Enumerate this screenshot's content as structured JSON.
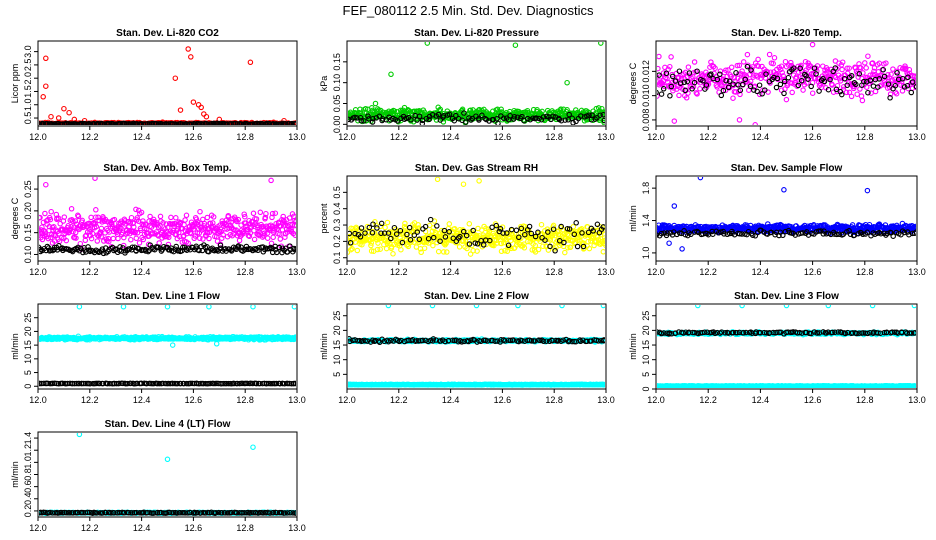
{
  "figure": {
    "title": "FEF_080112  2.5 Min. Std. Dev. Diagnostics"
  },
  "colors": {
    "black": "#000000",
    "red": "#ff0000",
    "green": "#00cc00",
    "magenta": "#ff00ff",
    "yellow": "#ffff00",
    "blue": "#0000ff",
    "cyan": "#00ffff"
  },
  "chart_data": [
    {
      "type": "scatter",
      "title": "Stan. Dev. Li-820 CO2",
      "ylabel": "Licor ppm",
      "xlim": [
        12.0,
        13.0
      ],
      "ylim": [
        0.2,
        3.4
      ],
      "xticks": [
        "12.0",
        "12.2",
        "12.4",
        "12.6",
        "12.8",
        "13.0"
      ],
      "yticks": [
        {
          "v": 0.5,
          "label": "0.5"
        },
        {
          "v": 1.0,
          "label": "1.0"
        },
        {
          "v": 1.5,
          "label": "1.5"
        },
        {
          "v": 2.0,
          "label": "2.0"
        },
        {
          "v": 2.5,
          "label": "2.5"
        },
        {
          "v": 3.0,
          "label": "3.0"
        }
      ],
      "series": [
        {
          "name": "all",
          "color": "red",
          "base": 0.3,
          "spread": 0.05,
          "n": 260,
          "outliers": [
            [
              12.02,
              1.3
            ],
            [
              12.03,
              1.7
            ],
            [
              12.03,
              2.75
            ],
            [
              12.05,
              0.55
            ],
            [
              12.08,
              0.5
            ],
            [
              12.1,
              0.85
            ],
            [
              12.12,
              0.7
            ],
            [
              12.14,
              0.45
            ],
            [
              12.18,
              0.4
            ],
            [
              12.53,
              2.0
            ],
            [
              12.55,
              0.8
            ],
            [
              12.58,
              3.1
            ],
            [
              12.59,
              2.8
            ],
            [
              12.6,
              1.1
            ],
            [
              12.62,
              1.0
            ],
            [
              12.63,
              0.9
            ],
            [
              12.64,
              0.65
            ],
            [
              12.65,
              0.55
            ],
            [
              12.7,
              0.45
            ],
            [
              12.82,
              2.6
            ],
            [
              12.95,
              0.4
            ]
          ]
        },
        {
          "name": "sel",
          "color": "black",
          "base": 0.28,
          "spread": 0.03,
          "n": 200,
          "outliers": []
        }
      ]
    },
    {
      "type": "scatter",
      "title": "Stan. Dev. Li-820 Pressure",
      "ylabel": "kPa",
      "xlim": [
        12.0,
        13.0
      ],
      "ylim": [
        -0.004,
        0.2
      ],
      "xticks": [
        "12.0",
        "12.2",
        "12.4",
        "12.6",
        "12.8",
        "13.0"
      ],
      "yticks": [
        {
          "v": 0.0,
          "label": "0.00"
        },
        {
          "v": 0.05,
          "label": "0.05"
        },
        {
          "v": 0.1,
          "label": "0.10"
        },
        {
          "v": 0.15,
          "label": "0.15"
        }
      ],
      "series": [
        {
          "name": "all",
          "color": "green",
          "base": 0.022,
          "spread": 0.022,
          "n": 500,
          "outliers": [
            [
              12.11,
              0.05
            ],
            [
              12.17,
              0.12
            ],
            [
              12.31,
              0.195
            ],
            [
              12.65,
              0.19
            ],
            [
              12.85,
              0.1
            ],
            [
              12.98,
              0.195
            ]
          ]
        },
        {
          "name": "sel",
          "color": "black",
          "base": 0.015,
          "spread": 0.015,
          "n": 110,
          "outliers": []
        }
      ]
    },
    {
      "type": "scatter",
      "title": "Stan. Dev. Li-820 Temp.",
      "ylabel": "degrees C",
      "xlim": [
        12.0,
        13.0
      ],
      "ylim": [
        0.0075,
        0.0145
      ],
      "xticks": [
        "12.0",
        "12.2",
        "12.4",
        "12.6",
        "12.8",
        "13.0"
      ],
      "yticks": [
        {
          "v": 0.008,
          "label": "0.008"
        },
        {
          "v": 0.01,
          "label": "0.010"
        },
        {
          "v": 0.012,
          "label": "0.012"
        }
      ],
      "series": [
        {
          "name": "all",
          "color": "magenta",
          "base": 0.0115,
          "spread": 0.0022,
          "n": 420,
          "outliers": [
            [
              12.07,
              0.0079
            ],
            [
              12.32,
              0.008
            ],
            [
              12.38,
              0.0076
            ],
            [
              12.6,
              0.0142
            ]
          ]
        },
        {
          "name": "sel",
          "color": "black",
          "base": 0.0112,
          "spread": 0.0016,
          "n": 110,
          "outliers": []
        }
      ]
    },
    {
      "type": "scatter",
      "title": "Stan. Dev. Amb. Box Temp.",
      "ylabel": "degrees C",
      "xlim": [
        12.0,
        13.0
      ],
      "ylim": [
        0.085,
        0.28
      ],
      "xticks": [
        "12.0",
        "12.2",
        "12.4",
        "12.6",
        "12.8",
        "13.0"
      ],
      "yticks": [
        {
          "v": 0.1,
          "label": "0.10"
        },
        {
          "v": 0.15,
          "label": "0.15"
        },
        {
          "v": 0.2,
          "label": "0.20"
        },
        {
          "v": 0.25,
          "label": "0.25"
        }
      ],
      "series": [
        {
          "name": "all",
          "color": "magenta",
          "base": 0.16,
          "spread": 0.05,
          "n": 520,
          "outliers": [
            [
              12.03,
              0.26
            ],
            [
              12.22,
              0.275
            ],
            [
              12.9,
              0.27
            ]
          ]
        },
        {
          "name": "sel",
          "color": "black",
          "base": 0.112,
          "spread": 0.012,
          "n": 190,
          "outliers": []
        }
      ]
    },
    {
      "type": "scatter",
      "title": "Stan. Dev. Gas Stream RH",
      "ylabel": "percent",
      "xlim": [
        12.0,
        13.0
      ],
      "ylim": [
        0.08,
        0.6
      ],
      "xticks": [
        "12.0",
        "12.2",
        "12.4",
        "12.6",
        "12.8",
        "13.0"
      ],
      "yticks": [
        {
          "v": 0.1,
          "label": "0.1"
        },
        {
          "v": 0.2,
          "label": "0.2"
        },
        {
          "v": 0.3,
          "label": "0.3"
        },
        {
          "v": 0.4,
          "label": "0.4"
        },
        {
          "v": 0.5,
          "label": "0.5"
        }
      ],
      "series": [
        {
          "name": "all",
          "color": "yellow",
          "base": 0.22,
          "spread": 0.12,
          "n": 520,
          "outliers": [
            [
              12.35,
              0.58
            ],
            [
              12.51,
              0.57
            ],
            [
              12.45,
              0.55
            ]
          ]
        },
        {
          "name": "sel",
          "color": "black",
          "base": 0.25,
          "spread": 0.12,
          "n": 90,
          "outliers": []
        }
      ]
    },
    {
      "type": "scatter",
      "title": "Stan. Dev. Sample Flow",
      "ylabel": "ml/min",
      "xlim": [
        12.0,
        13.0
      ],
      "ylim": [
        0.9,
        1.95
      ],
      "xticks": [
        "12.0",
        "12.2",
        "12.4",
        "12.6",
        "12.8",
        "13.0"
      ],
      "yticks": [
        {
          "v": 1.0,
          "label": "1.0"
        },
        {
          "v": 1.4,
          "label": "1.4"
        },
        {
          "v": 1.8,
          "label": "1.8"
        }
      ],
      "series": [
        {
          "name": "all",
          "color": "blue",
          "base": 1.3,
          "spread": 0.07,
          "n": 520,
          "outliers": [
            [
              12.07,
              1.58
            ],
            [
              12.17,
              1.93
            ],
            [
              12.49,
              1.78
            ],
            [
              12.81,
              1.77
            ],
            [
              12.1,
              1.05
            ],
            [
              12.05,
              1.12
            ]
          ]
        },
        {
          "name": "sel",
          "color": "black",
          "base": 1.24,
          "spread": 0.05,
          "n": 120,
          "outliers": []
        }
      ]
    },
    {
      "type": "scatter",
      "title": "Stan. Dev. Line 1 Flow",
      "ylabel": "ml/min",
      "xlim": [
        12.0,
        13.0
      ],
      "ylim": [
        -1,
        30
      ],
      "xticks": [
        "12.0",
        "12.2",
        "12.4",
        "12.6",
        "12.8",
        "13.0"
      ],
      "yticks": [
        {
          "v": 0,
          "label": "0"
        },
        {
          "v": 5,
          "label": "5"
        },
        {
          "v": 10,
          "label": "10"
        },
        {
          "v": 15,
          "label": "15"
        },
        {
          "v": 20,
          "label": "20"
        },
        {
          "v": 25,
          "label": "25"
        }
      ],
      "series": [
        {
          "name": "all",
          "color": "cyan",
          "base": 17.5,
          "spread": 0.8,
          "n": 460,
          "outliers": [
            [
              12.16,
              29
            ],
            [
              12.33,
              29
            ],
            [
              12.5,
              29
            ],
            [
              12.66,
              29
            ],
            [
              12.83,
              29
            ],
            [
              12.99,
              29
            ],
            [
              12.52,
              15
            ],
            [
              12.69,
              15.5
            ]
          ]
        },
        {
          "name": "sel",
          "color": "black",
          "base": 1.0,
          "spread": 0.1,
          "n": 160,
          "outliers": []
        }
      ]
    },
    {
      "type": "scatter",
      "title": "Stan. Dev. Line 2 Flow",
      "ylabel": "ml/min",
      "xlim": [
        12.0,
        13.0
      ],
      "ylim": [
        0,
        29
      ],
      "xticks": [
        "12.0",
        "12.2",
        "12.4",
        "12.6",
        "12.8",
        "13.0"
      ],
      "yticks": [
        {
          "v": 5,
          "label": "5"
        },
        {
          "v": 10,
          "label": "10"
        },
        {
          "v": 15,
          "label": "15"
        },
        {
          "v": 20,
          "label": "20"
        },
        {
          "v": 25,
          "label": "25"
        }
      ],
      "series": [
        {
          "name": "all",
          "color": "cyan",
          "base": 1.5,
          "spread": 0.15,
          "n": 400,
          "outliers": [
            [
              12.16,
              28.5
            ],
            [
              12.33,
              28.5
            ],
            [
              12.5,
              28.5
            ],
            [
              12.66,
              28.5
            ],
            [
              12.83,
              28.5
            ],
            [
              12.99,
              28.5
            ]
          ]
        },
        {
          "name": "all-hi",
          "color": "cyan",
          "base": 16.5,
          "spread": 0.6,
          "n": 300,
          "outliers": []
        },
        {
          "name": "sel",
          "color": "black",
          "base": 16.5,
          "spread": 0.7,
          "n": 120,
          "outliers": []
        }
      ]
    },
    {
      "type": "scatter",
      "title": "Stan. Dev. Line 3 Flow",
      "ylabel": "ml/min",
      "xlim": [
        12.0,
        13.0
      ],
      "ylim": [
        0,
        29
      ],
      "xticks": [
        "12.0",
        "12.2",
        "12.4",
        "12.6",
        "12.8",
        "13.0"
      ],
      "yticks": [
        {
          "v": 0,
          "label": "0"
        },
        {
          "v": 5,
          "label": "5"
        },
        {
          "v": 10,
          "label": "10"
        },
        {
          "v": 15,
          "label": "15"
        },
        {
          "v": 20,
          "label": "20"
        },
        {
          "v": 25,
          "label": "25"
        }
      ],
      "series": [
        {
          "name": "all",
          "color": "cyan",
          "base": 1.0,
          "spread": 0.15,
          "n": 400,
          "outliers": [
            [
              12.16,
              28.5
            ],
            [
              12.33,
              28.5
            ],
            [
              12.5,
              28.5
            ],
            [
              12.66,
              28.5
            ],
            [
              12.83,
              28.5
            ],
            [
              12.99,
              28.5
            ]
          ]
        },
        {
          "name": "all-hi",
          "color": "cyan",
          "base": 19.0,
          "spread": 0.6,
          "n": 300,
          "outliers": []
        },
        {
          "name": "sel",
          "color": "black",
          "base": 19.2,
          "spread": 0.5,
          "n": 120,
          "outliers": []
        }
      ]
    },
    {
      "type": "scatter",
      "title": "Stan. Dev. Line 4 (LT) Flow",
      "ylabel": "ml/min",
      "xlim": [
        12.0,
        13.0
      ],
      "ylim": [
        0.1,
        1.5
      ],
      "xticks": [
        "12.0",
        "12.2",
        "12.4",
        "12.6",
        "12.8",
        "13.0"
      ],
      "yticks": [
        {
          "v": 0.2,
          "label": "0.2"
        },
        {
          "v": 0.4,
          "label": "0.4"
        },
        {
          "v": 0.6,
          "label": "0.6"
        },
        {
          "v": 0.8,
          "label": "0.8"
        },
        {
          "v": 1.0,
          "label": "1.0"
        },
        {
          "v": 1.2,
          "label": "1.2"
        },
        {
          "v": 1.4,
          "label": "1.4"
        }
      ],
      "series": [
        {
          "name": "all",
          "color": "cyan",
          "base": 0.17,
          "spread": 0.01,
          "n": 400,
          "outliers": [
            [
              12.16,
              1.46
            ],
            [
              12.5,
              1.05
            ],
            [
              12.83,
              1.25
            ]
          ]
        },
        {
          "name": "sel",
          "color": "black",
          "base": 0.17,
          "spread": 0.01,
          "n": 150,
          "outliers": []
        }
      ]
    }
  ]
}
